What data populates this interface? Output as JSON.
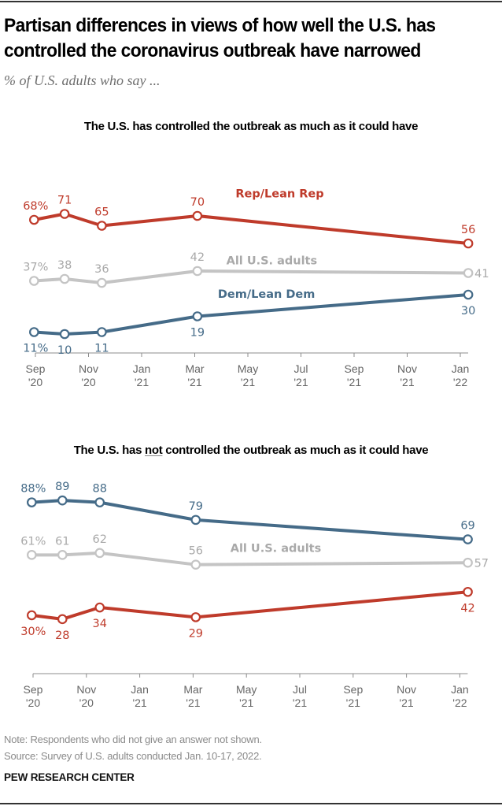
{
  "header": {
    "title_line1": "Partisan differences in views of how well the U.S. has",
    "title_line2": "controlled the coronavirus outbreak have narrowed",
    "subtitle": "% of U.S. adults who say ..."
  },
  "colors": {
    "rep": "#BF3B2B",
    "dem": "#456B88",
    "all_line": "#C4C4C4",
    "all_text": "#A9A9A9",
    "axis": "#8c8c8c"
  },
  "chart_data": [
    {
      "type": "line",
      "title_pre": "The U.S. has controlled the outbreak as much as it could have",
      "title_emph": "",
      "title_post": "",
      "xlabel": "",
      "ylabel": "%",
      "ylim": [
        0,
        75
      ],
      "grid": false,
      "x_ticks": [
        {
          "m": 0,
          "line1": "Sep",
          "line2": "'20"
        },
        {
          "m": 2,
          "line1": "Nov",
          "line2": "'20"
        },
        {
          "m": 4,
          "line1": "Jan",
          "line2": "'21"
        },
        {
          "m": 6,
          "line1": "Mar",
          "line2": "'21"
        },
        {
          "m": 8,
          "line1": "May",
          "line2": "'21"
        },
        {
          "m": 10,
          "line1": "Jul",
          "line2": "'21"
        },
        {
          "m": 12,
          "line1": "Sep",
          "line2": "'21"
        },
        {
          "m": 14,
          "line1": "Nov",
          "line2": "'21"
        },
        {
          "m": 16,
          "line1": "Jan",
          "line2": "'22"
        }
      ],
      "x": [
        -0.05,
        1.1,
        2.5,
        6.1,
        16.3
      ],
      "series": [
        {
          "name": "Rep/Lean Rep",
          "key": "rep",
          "values": [
            68,
            71,
            65,
            70,
            56
          ],
          "labels": [
            "68%",
            "71",
            "65",
            "70",
            "56"
          ],
          "label_pos": [
            "above",
            "above",
            "above",
            "above",
            "above"
          ]
        },
        {
          "name": "All U.S. adults",
          "key": "all",
          "values": [
            37,
            38,
            36,
            42,
            41
          ],
          "labels": [
            "37%",
            "38",
            "36",
            "42",
            "41"
          ],
          "label_pos": [
            "above",
            "above",
            "above",
            "above",
            "right"
          ]
        },
        {
          "name": "Dem/Lean Dem",
          "key": "dem",
          "values": [
            11,
            10,
            11,
            19,
            30
          ],
          "labels": [
            "11%",
            "10",
            "11",
            "19",
            "30"
          ],
          "label_pos": [
            "below",
            "below",
            "below",
            "below",
            "below"
          ]
        }
      ],
      "series_labels": [
        {
          "key": "rep",
          "text": "Rep/Lean Rep",
          "at_m": 9.2,
          "at_v": 79.5
        },
        {
          "key": "all",
          "text": "All U.S. adults",
          "at_m": 8.9,
          "at_v": 45.5
        },
        {
          "key": "dem",
          "text": "Dem/Lean Dem",
          "at_m": 8.7,
          "at_v": 28.5
        }
      ]
    },
    {
      "type": "line",
      "title_pre": "The U.S. has ",
      "title_emph": "not",
      "title_post": " controlled the outbreak as much as it could have",
      "xlabel": "",
      "ylabel": "%",
      "ylim": [
        0,
        95
      ],
      "grid": false,
      "x_ticks": [
        {
          "m": 0,
          "line1": "Sep",
          "line2": "'20"
        },
        {
          "m": 2,
          "line1": "Nov",
          "line2": "'20"
        },
        {
          "m": 4,
          "line1": "Jan",
          "line2": "'21"
        },
        {
          "m": 6,
          "line1": "Mar",
          "line2": "'21"
        },
        {
          "m": 8,
          "line1": "May",
          "line2": "'21"
        },
        {
          "m": 10,
          "line1": "Jul",
          "line2": "'21"
        },
        {
          "m": 12,
          "line1": "Sep",
          "line2": "'21"
        },
        {
          "m": 14,
          "line1": "Nov",
          "line2": "'21"
        },
        {
          "m": 16,
          "line1": "Jan",
          "line2": "'22"
        }
      ],
      "x": [
        -0.05,
        1.1,
        2.5,
        6.1,
        16.3
      ],
      "series": [
        {
          "name": "Dem/Lean Dem",
          "key": "dem",
          "values": [
            88,
            89,
            88,
            79,
            69
          ],
          "labels": [
            "88%",
            "89",
            "88",
            "79",
            "69"
          ],
          "label_pos": [
            "above",
            "above",
            "above",
            "above",
            "above"
          ]
        },
        {
          "name": "All U.S. adults",
          "key": "all",
          "values": [
            61,
            61,
            62,
            56,
            57
          ],
          "labels": [
            "61%",
            "61",
            "62",
            "56",
            "57"
          ],
          "label_pos": [
            "above",
            "above",
            "above",
            "above",
            "right"
          ]
        },
        {
          "name": "Rep/Lean Rep",
          "key": "rep",
          "values": [
            30,
            28,
            34,
            29,
            42
          ],
          "labels": [
            "30%",
            "28",
            "34",
            "29",
            "42"
          ],
          "label_pos": [
            "below",
            "below",
            "below",
            "below",
            "below"
          ]
        }
      ],
      "series_labels": [
        {
          "key": "all",
          "text": "All U.S. adults",
          "at_m": 9.1,
          "at_v": 62.5
        }
      ]
    }
  ],
  "footer": {
    "note": "Note: Respondents who did not give an answer not shown.",
    "source": "Source: Survey of U.S. adults conducted Jan. 10-17, 2022.",
    "brand": "PEW RESEARCH CENTER"
  }
}
